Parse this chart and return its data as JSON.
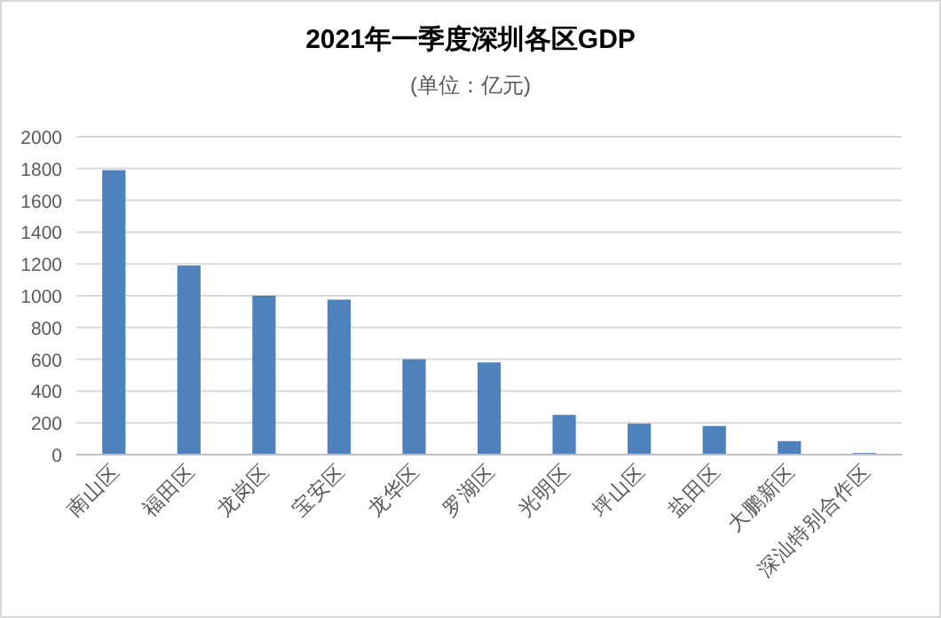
{
  "chart_data": {
    "type": "bar",
    "title": "2021年一季度深圳各区GDP",
    "subtitle": "(单位：亿元)",
    "categories": [
      "南山区",
      "福田区",
      "龙岗区",
      "宝安区",
      "龙华区",
      "罗湖区",
      "光明区",
      "坪山区",
      "盐田区",
      "大鹏新区",
      "深汕特别合作区"
    ],
    "values": [
      1790,
      1190,
      1000,
      975,
      600,
      580,
      250,
      195,
      180,
      85,
      10
    ],
    "color": "#4f81bd",
    "ylim": [
      0,
      2000
    ],
    "yticks": [
      0,
      200,
      400,
      600,
      800,
      1000,
      1200,
      1400,
      1600,
      1800,
      2000
    ],
    "grid": "y"
  }
}
